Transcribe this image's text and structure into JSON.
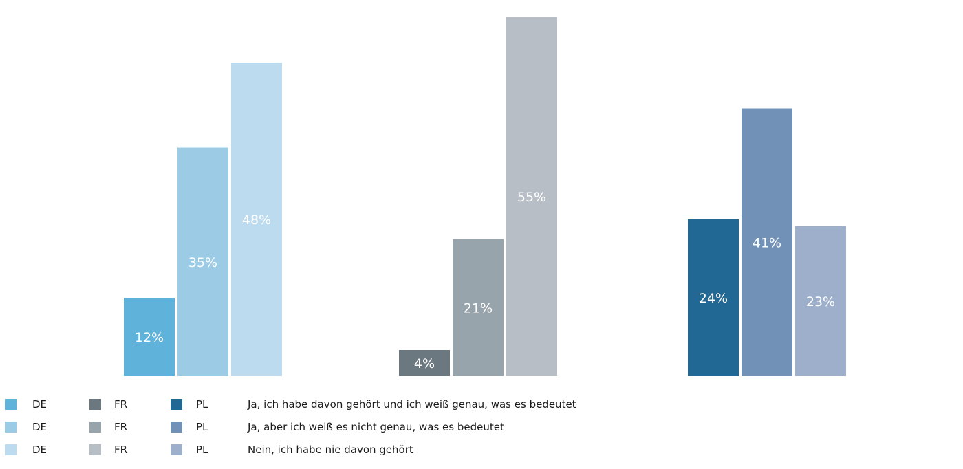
{
  "chart_data": {
    "type": "bar",
    "title": "",
    "xlabel": "",
    "ylabel": "",
    "ylim": [
      0,
      56
    ],
    "grid": false,
    "unit": "%",
    "groups": [
      {
        "country": "DE",
        "values": [
          12,
          35,
          48
        ],
        "colors": [
          "#5fb3da",
          "#9ccbe6",
          "#bddbee"
        ]
      },
      {
        "country": "FR",
        "values": [
          4,
          21,
          55
        ],
        "colors": [
          "#6c7880",
          "#98a4ab",
          "#b7bec6"
        ]
      },
      {
        "country": "PL",
        "values": [
          24,
          41,
          23
        ],
        "colors": [
          "#216894",
          "#7191b6",
          "#9dafca"
        ]
      }
    ],
    "value_labels": [
      [
        "12%",
        "35%",
        "48%"
      ],
      [
        "4%",
        "21%",
        "55%"
      ],
      [
        "24%",
        "41%",
        "23%"
      ]
    ],
    "series": [
      {
        "name": "Ja, ich habe davon gehört und ich weiß genau, was es bedeutet"
      },
      {
        "name": "Ja, aber ich weiß es nicht genau, was es bedeutet"
      },
      {
        "name": "Nein, ich habe nie davon  gehört"
      }
    ]
  },
  "legend": {
    "rows": [
      {
        "codes": [
          "DE",
          "FR",
          "PL"
        ],
        "label": "Ja, ich habe davon gehört und ich weiß genau, was es bedeutet"
      },
      {
        "codes": [
          "DE",
          "FR",
          "PL"
        ],
        "label": "Ja, aber ich weiß es nicht genau, was es bedeutet"
      },
      {
        "codes": [
          "DE",
          "FR",
          "PL"
        ],
        "label": "Nein, ich habe nie davon  gehört"
      }
    ]
  }
}
